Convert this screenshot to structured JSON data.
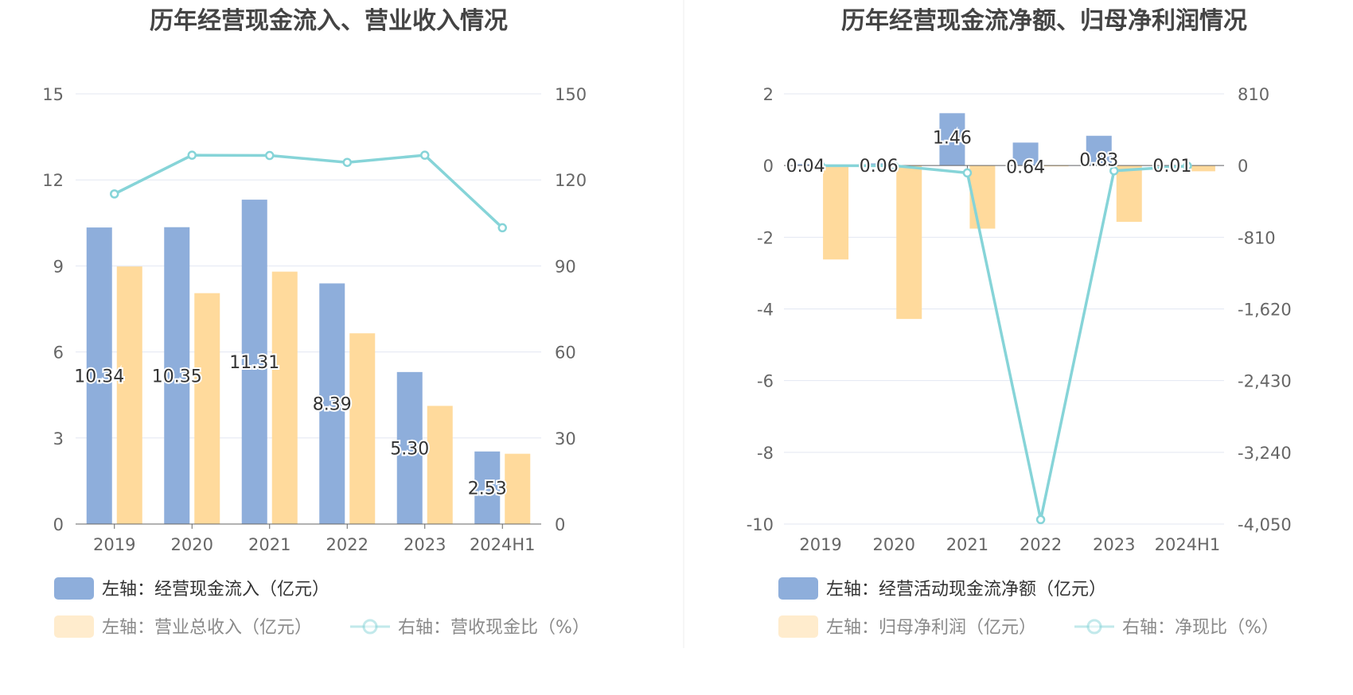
{
  "colors": {
    "blue": "#8EAEDB",
    "orange": "#FFDA9C",
    "teal": "#86D4D8",
    "grid": "#E3E7F2",
    "axis": "#666666"
  },
  "chart_data": [
    {
      "type": "bar",
      "title": "历年经营现金流入、营业收入情况",
      "categories": [
        "2019",
        "2020",
        "2021",
        "2022",
        "2023",
        "2024H1"
      ],
      "left_axis": {
        "ticks": [
          "0",
          "3",
          "6",
          "9",
          "12",
          "15"
        ],
        "ylim": [
          0,
          15
        ]
      },
      "right_axis": {
        "ticks": [
          "0",
          "30",
          "60",
          "90",
          "120",
          "150"
        ],
        "ylim": [
          0,
          150
        ]
      },
      "series": [
        {
          "name": "左轴：经营现金流入（亿元）",
          "type": "bar",
          "axis": "left",
          "color": "blue",
          "values": [
            10.34,
            10.35,
            11.31,
            8.39,
            5.3,
            2.53
          ],
          "labels": [
            "10.34",
            "10.35",
            "11.31",
            "8.39",
            "5.30",
            "2.53"
          ]
        },
        {
          "name": "左轴：营业总收入（亿元）",
          "type": "bar",
          "axis": "left",
          "color": "orange",
          "values": [
            8.98,
            8.05,
            8.8,
            6.65,
            4.12,
            2.45
          ]
        },
        {
          "name": "右轴：营收现金比（%）",
          "type": "line",
          "axis": "right",
          "color": "teal",
          "values": [
            115.1,
            128.6,
            128.5,
            126.1,
            128.6,
            103.3
          ]
        }
      ]
    },
    {
      "type": "bar",
      "title": "历年经营现金流净额、归母净利润情况",
      "categories": [
        "2019",
        "2020",
        "2021",
        "2022",
        "2023",
        "2024H1"
      ],
      "left_axis": {
        "ticks": [
          "-10",
          "-8",
          "-6",
          "-4",
          "-2",
          "0",
          "2"
        ],
        "ylim": [
          -10,
          2
        ]
      },
      "right_axis": {
        "ticks": [
          "-4,050",
          "-3,240",
          "-2,430",
          "-1,620",
          "-810",
          "0",
          "810"
        ],
        "ylim": [
          -4050,
          810
        ]
      },
      "series": [
        {
          "name": "左轴：经营活动现金流净额（亿元）",
          "type": "bar",
          "axis": "left",
          "color": "blue",
          "values": [
            0.04,
            0.06,
            1.46,
            0.64,
            0.83,
            0.01
          ],
          "labels": [
            "0.04",
            "0.06",
            "1.46",
            "0.64",
            "0.83",
            "0.01"
          ]
        },
        {
          "name": "左轴：归母净利润（亿元）",
          "type": "bar",
          "axis": "left",
          "color": "orange",
          "values": [
            -2.62,
            -4.28,
            -1.76,
            -0.02,
            -1.57,
            -0.16
          ]
        },
        {
          "name": "右轴：净现比（%）",
          "type": "line",
          "axis": "right",
          "color": "teal",
          "values": [
            -1.5,
            -1.4,
            -83.0,
            -4000,
            -60,
            -5
          ]
        }
      ]
    }
  ]
}
